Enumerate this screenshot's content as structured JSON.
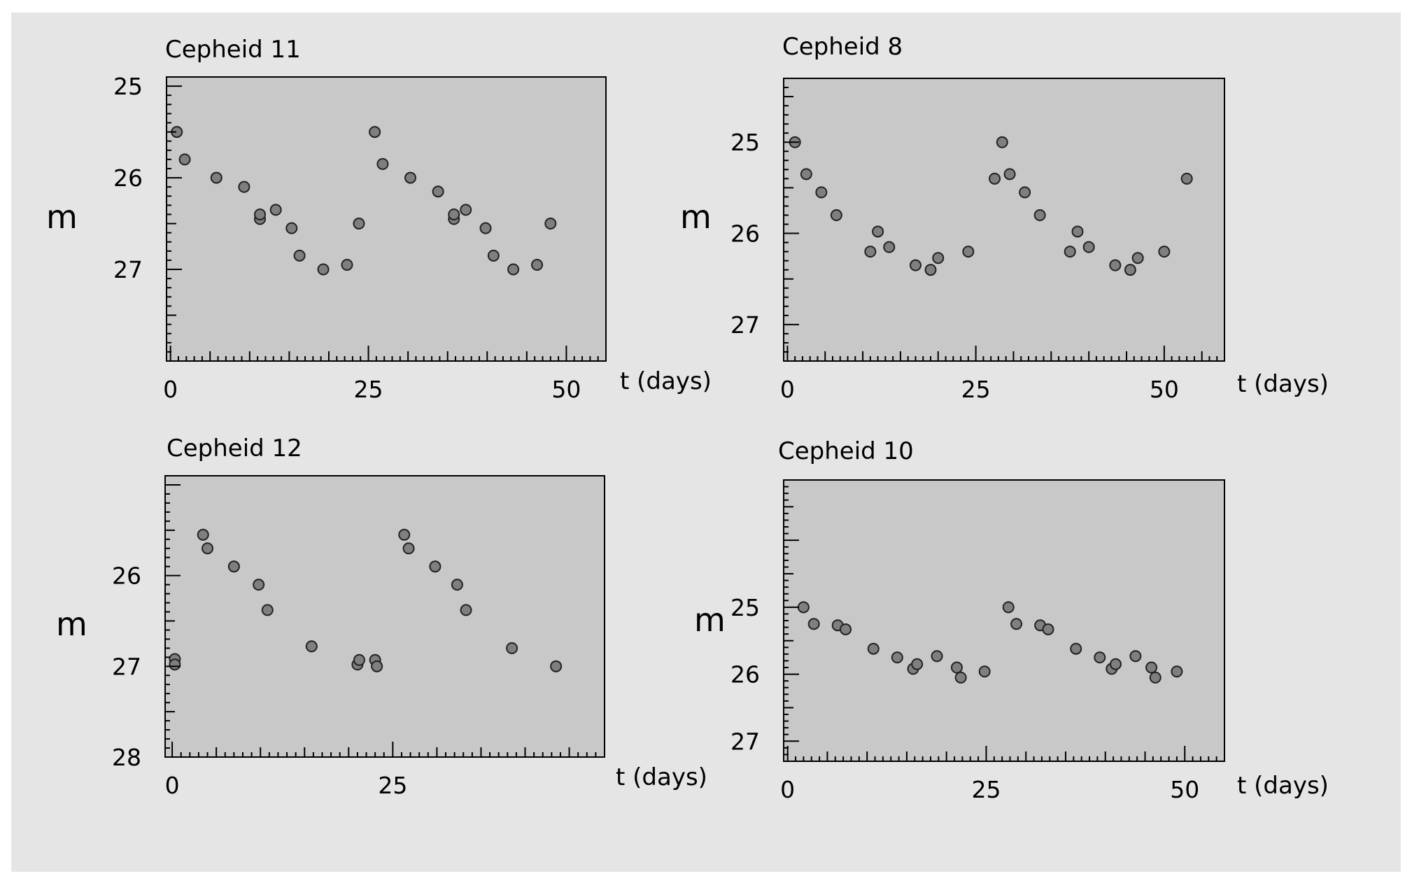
{
  "colors": {
    "figure_bg": "#e5e5e5",
    "plot_bg": "#c8c8c8",
    "marker_fill": "#7f7f7f",
    "marker_edge": "#222222",
    "axis": "#000000"
  },
  "chart_data": [
    {
      "type": "scatter",
      "title": "Cepheid 11",
      "xlabel": "t (days)",
      "ylabel": "m",
      "xlim": [
        -0.5,
        55
      ],
      "ylim": [
        28,
        24.9
      ],
      "y_inverted": true,
      "grid": false,
      "xticks": [
        0,
        25,
        50
      ],
      "yticks": [
        25,
        26,
        27
      ],
      "series": [
        {
          "x": [
            0.8,
            1.8,
            5.8,
            9.3,
            11.3,
            11.3,
            13.3,
            15.3,
            16.3,
            19.3,
            22.3,
            23.8,
            25.8,
            26.8,
            30.3,
            33.8,
            35.8,
            35.8,
            37.3,
            39.8,
            40.8,
            43.3,
            46.3,
            48.0
          ],
          "y": [
            25.5,
            25.8,
            26.0,
            26.1,
            26.45,
            26.4,
            26.35,
            26.55,
            26.85,
            27.0,
            26.95,
            26.5,
            25.5,
            25.85,
            26.0,
            26.15,
            26.45,
            26.4,
            26.35,
            26.55,
            26.85,
            27.0,
            26.95,
            26.5
          ]
        }
      ]
    },
    {
      "type": "scatter",
      "title": "Cepheid 8",
      "xlabel": "t (days)",
      "ylabel": "m",
      "xlim": [
        -0.5,
        58
      ],
      "ylim": [
        27.4,
        24.3
      ],
      "y_inverted": true,
      "grid": false,
      "xticks": [
        0,
        25,
        50
      ],
      "yticks": [
        25,
        26,
        27
      ],
      "series": [
        {
          "x": [
            1.0,
            2.5,
            4.5,
            6.5,
            11.0,
            12.0,
            13.5,
            17.0,
            19.0,
            20.0,
            24.0,
            27.5,
            28.5,
            29.5,
            31.5,
            33.5,
            37.5,
            38.5,
            40.0,
            43.5,
            45.5,
            46.5,
            50.0,
            53.0
          ],
          "y": [
            25.0,
            25.35,
            25.55,
            25.8,
            26.2,
            25.98,
            26.15,
            26.35,
            26.4,
            26.27,
            26.2,
            25.4,
            25.0,
            25.35,
            25.55,
            25.8,
            26.2,
            25.98,
            26.15,
            26.35,
            26.4,
            26.27,
            26.2,
            25.4
          ]
        }
      ]
    },
    {
      "type": "scatter",
      "title": "Cepheid 12",
      "xlabel": "t (days)",
      "ylabel": "m",
      "xlim": [
        -0.8,
        49
      ],
      "ylim": [
        28,
        24.9
      ],
      "y_inverted": true,
      "grid": false,
      "xticks": [
        0,
        25
      ],
      "yticks": [
        26,
        27,
        28
      ],
      "series": [
        {
          "x": [
            0.3,
            0.3,
            3.5,
            4.0,
            7.0,
            9.8,
            10.8,
            15.8,
            21.0,
            21.2,
            23.0,
            23.2,
            26.3,
            26.8,
            29.8,
            32.3,
            33.3,
            38.5,
            43.5
          ],
          "y": [
            26.92,
            26.98,
            25.55,
            25.7,
            25.9,
            26.1,
            26.38,
            26.78,
            26.98,
            26.93,
            26.93,
            27.0,
            25.55,
            25.7,
            25.9,
            26.1,
            26.38,
            26.8,
            27.0
          ]
        }
      ]
    },
    {
      "type": "scatter",
      "title": "Cepheid 10",
      "xlabel": "t (days)",
      "ylabel": "m",
      "xlim": [
        -0.5,
        55
      ],
      "ylim": [
        27.3,
        23.1
      ],
      "y_inverted": true,
      "grid": false,
      "xticks": [
        0,
        25,
        50
      ],
      "yticks": [
        25,
        26,
        27
      ],
      "series": [
        {
          "x": [
            2.0,
            3.3,
            6.3,
            7.3,
            10.8,
            13.8,
            15.8,
            16.3,
            18.8,
            21.3,
            21.8,
            24.8,
            27.8,
            28.8,
            31.8,
            32.8,
            36.3,
            39.3,
            40.8,
            41.3,
            43.8,
            45.8,
            46.3,
            49.0
          ],
          "y": [
            25.0,
            25.25,
            25.27,
            25.33,
            25.62,
            25.75,
            25.92,
            25.85,
            25.73,
            25.9,
            26.05,
            25.96,
            25.0,
            25.25,
            25.27,
            25.33,
            25.62,
            25.75,
            25.92,
            25.85,
            25.73,
            25.9,
            26.05,
            25.96
          ]
        }
      ]
    }
  ]
}
